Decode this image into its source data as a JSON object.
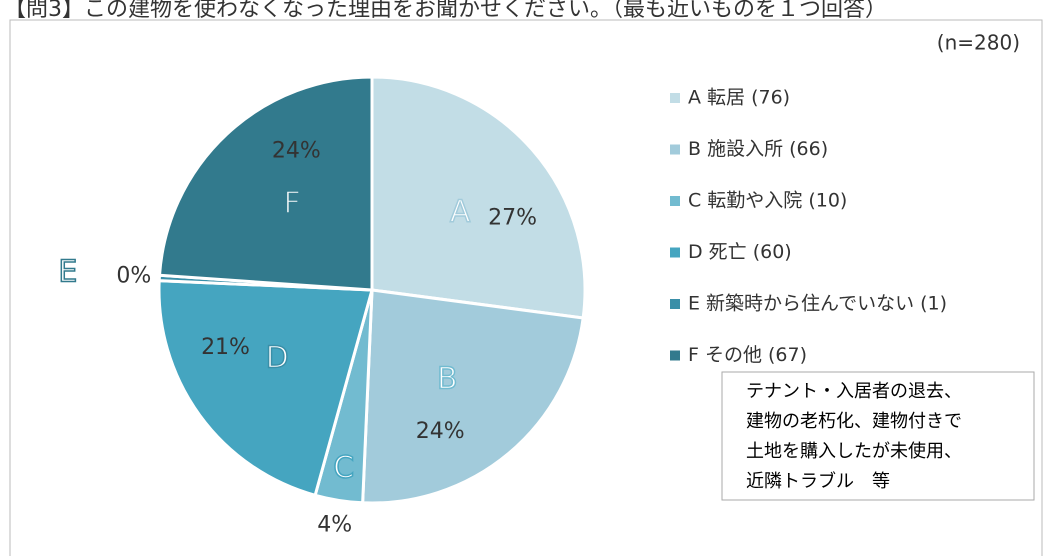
{
  "chart_data": {
    "type": "pie",
    "title": "【問3】この建物を使わなくなった理由をお聞かせください。（最も近いものを１つ回答）",
    "subtitle": "(n=280)",
    "categories": [
      "A",
      "B",
      "C",
      "D",
      "E",
      "F"
    ],
    "labels": [
      "A  転居 (76)",
      "B  施設入所 (66)",
      "C  転勤や入院 (10)",
      "D  死亡 (60)",
      "E  新築時から住んでいない (1)",
      "F  その他 (67)"
    ],
    "values": [
      27.1,
      23.6,
      3.6,
      21.4,
      0.4,
      23.9
    ],
    "value_labels": [
      "27%",
      "24%",
      "4%",
      "21%",
      "0%",
      "24%"
    ],
    "colors": [
      "#c2dde6",
      "#a2cbdb",
      "#72bbd0",
      "#45a5c0",
      "#3a8fa8",
      "#327a8d"
    ],
    "annotation": [
      "テナント・入居者の退去、",
      "建物の老朽化、建物付きで",
      "土地を購入したが未使用、",
      "近隣トラブル　等"
    ]
  }
}
